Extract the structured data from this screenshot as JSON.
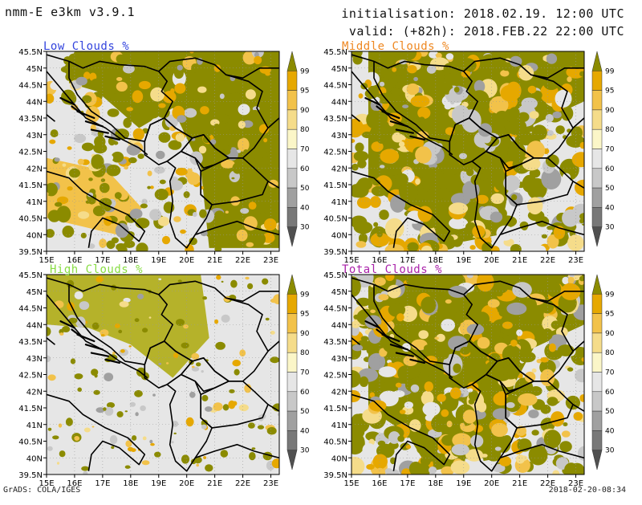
{
  "header": {
    "model": "nmm-E e3km v3.9.1",
    "initialisation": "initialisation: 2018.02.19. 12:00 UTC",
    "valid": "valid: (+82h): 2018.FEB.22 22:00 UTC"
  },
  "panels": [
    {
      "title": "Low Clouds %",
      "title_color": "#3344dd",
      "coverage": "patchy"
    },
    {
      "title": "Middle Clouds %",
      "title_color": "#ee8822",
      "coverage": "heavy"
    },
    {
      "title": "High Clouds %",
      "title_color": "#88dd44",
      "coverage": "light"
    },
    {
      "title": "Total Clouds %",
      "title_color": "#aa22aa",
      "coverage": "heavy"
    }
  ],
  "axes": {
    "lat_labels": [
      "45.5N",
      "45N",
      "44.5N",
      "44N",
      "43.5N",
      "43N",
      "42.5N",
      "42N",
      "41.5N",
      "41N",
      "40.5N",
      "40N",
      "39.5N"
    ],
    "lon_labels": [
      "15E",
      "16E",
      "17E",
      "18E",
      "19E",
      "20E",
      "21E",
      "22E",
      "23E"
    ]
  },
  "colorbar": {
    "levels": [
      "99",
      "95",
      "90",
      "80",
      "70",
      "60",
      "50",
      "40",
      "30"
    ],
    "colors": [
      "#8b8b00",
      "#e6a800",
      "#f2c24a",
      "#f5dc8a",
      "#fbf6c8",
      "#e6e6e6",
      "#c8c8c8",
      "#a0a0a0",
      "#787878",
      "#505050"
    ]
  },
  "colors": {
    "map_background": "#e6e6e6",
    "border": "#000000",
    "grid": "#999999"
  },
  "footer": {
    "left": "GrADS: COLA/IGES",
    "right": "2018-02-20-08:34"
  }
}
